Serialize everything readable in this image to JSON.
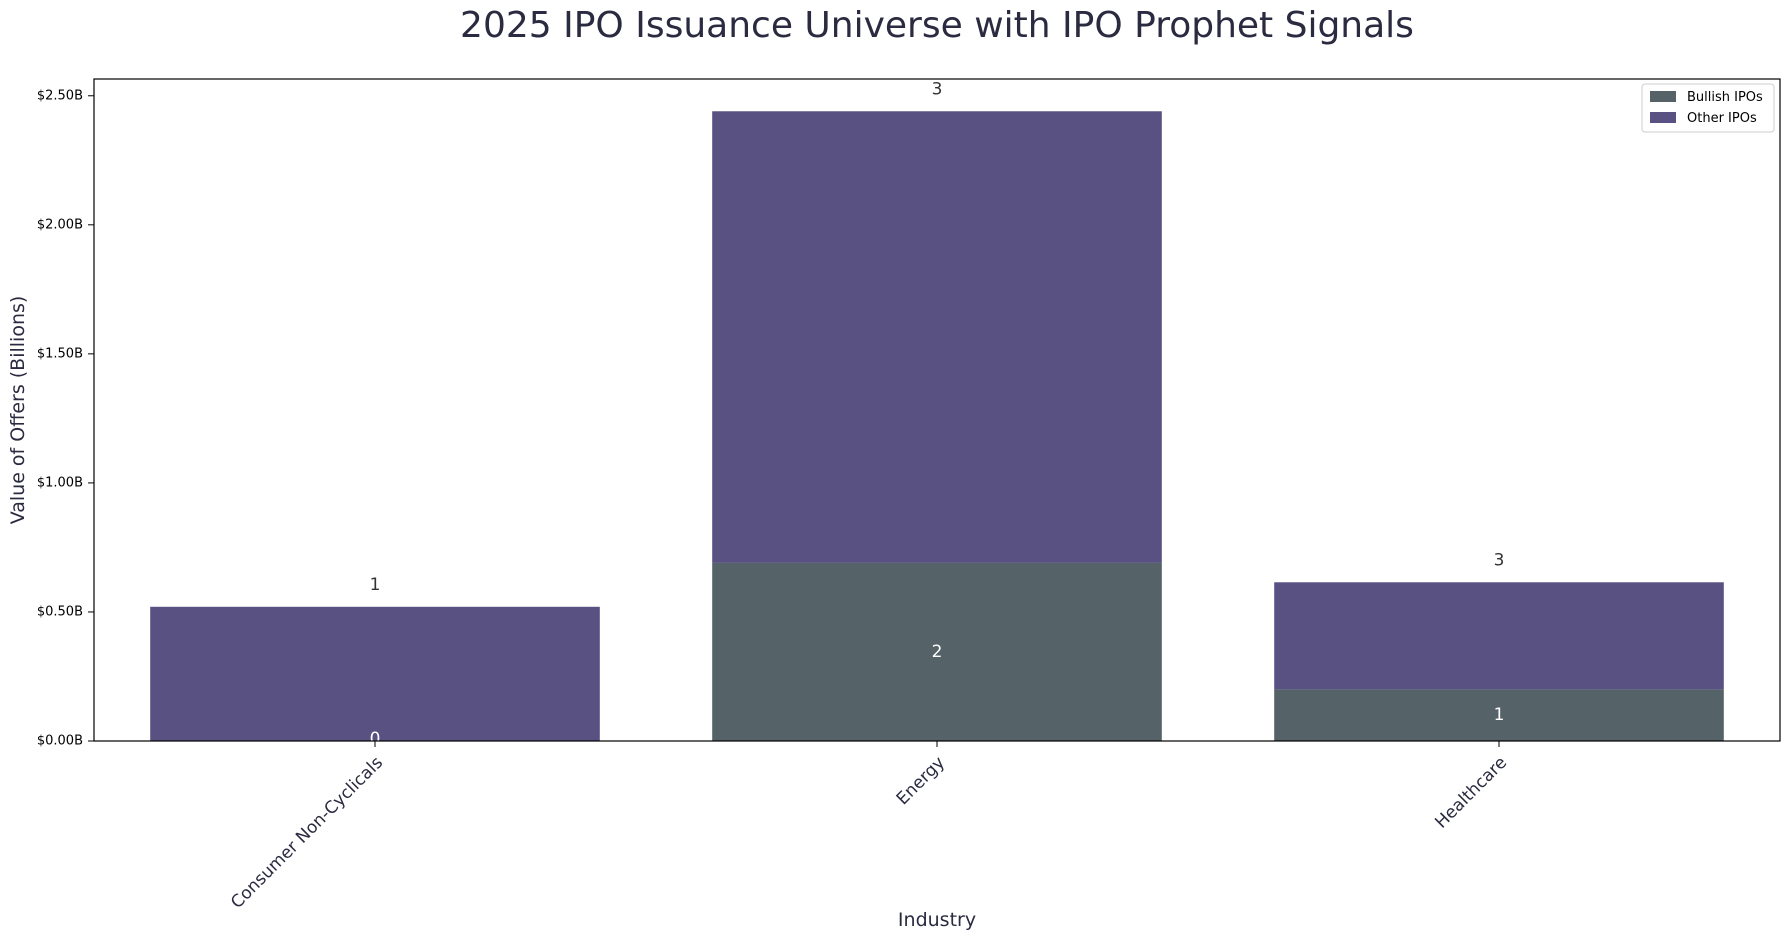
{
  "colors": {
    "bullish": "#556268",
    "other": "#5a5183",
    "title": "#2a2a40",
    "inner_label": "#ffffff",
    "total_label": "#333333"
  },
  "chart_data": {
    "type": "bar",
    "stacked": true,
    "title": "2025 IPO Issuance Universe with IPO Prophet Signals",
    "xlabel": "Industry",
    "ylabel": "Value of Offers (Billions)",
    "categories": [
      "Consumer Non-Cyclicals",
      "Energy",
      "Healthcare"
    ],
    "series": [
      {
        "name": "Bullish IPOs",
        "values": [
          0.0,
          0.69,
          0.2
        ],
        "counts": [
          "0",
          "2",
          "1"
        ],
        "color": "#556268"
      },
      {
        "name": "Other IPOs",
        "values": [
          0.52,
          1.75,
          0.415
        ],
        "color": "#5a5183"
      }
    ],
    "total_counts": [
      "1",
      "3",
      "3"
    ],
    "ylim": [
      0,
      2.565
    ],
    "yticks": [
      0,
      0.5,
      1.0,
      1.5,
      2.0,
      2.5
    ],
    "ytick_labels": [
      "$0.00B",
      "$0.50B",
      "$1.00B",
      "$1.50B",
      "$2.00B",
      "$2.50B"
    ],
    "legend_position": "top-right",
    "grid": false
  }
}
